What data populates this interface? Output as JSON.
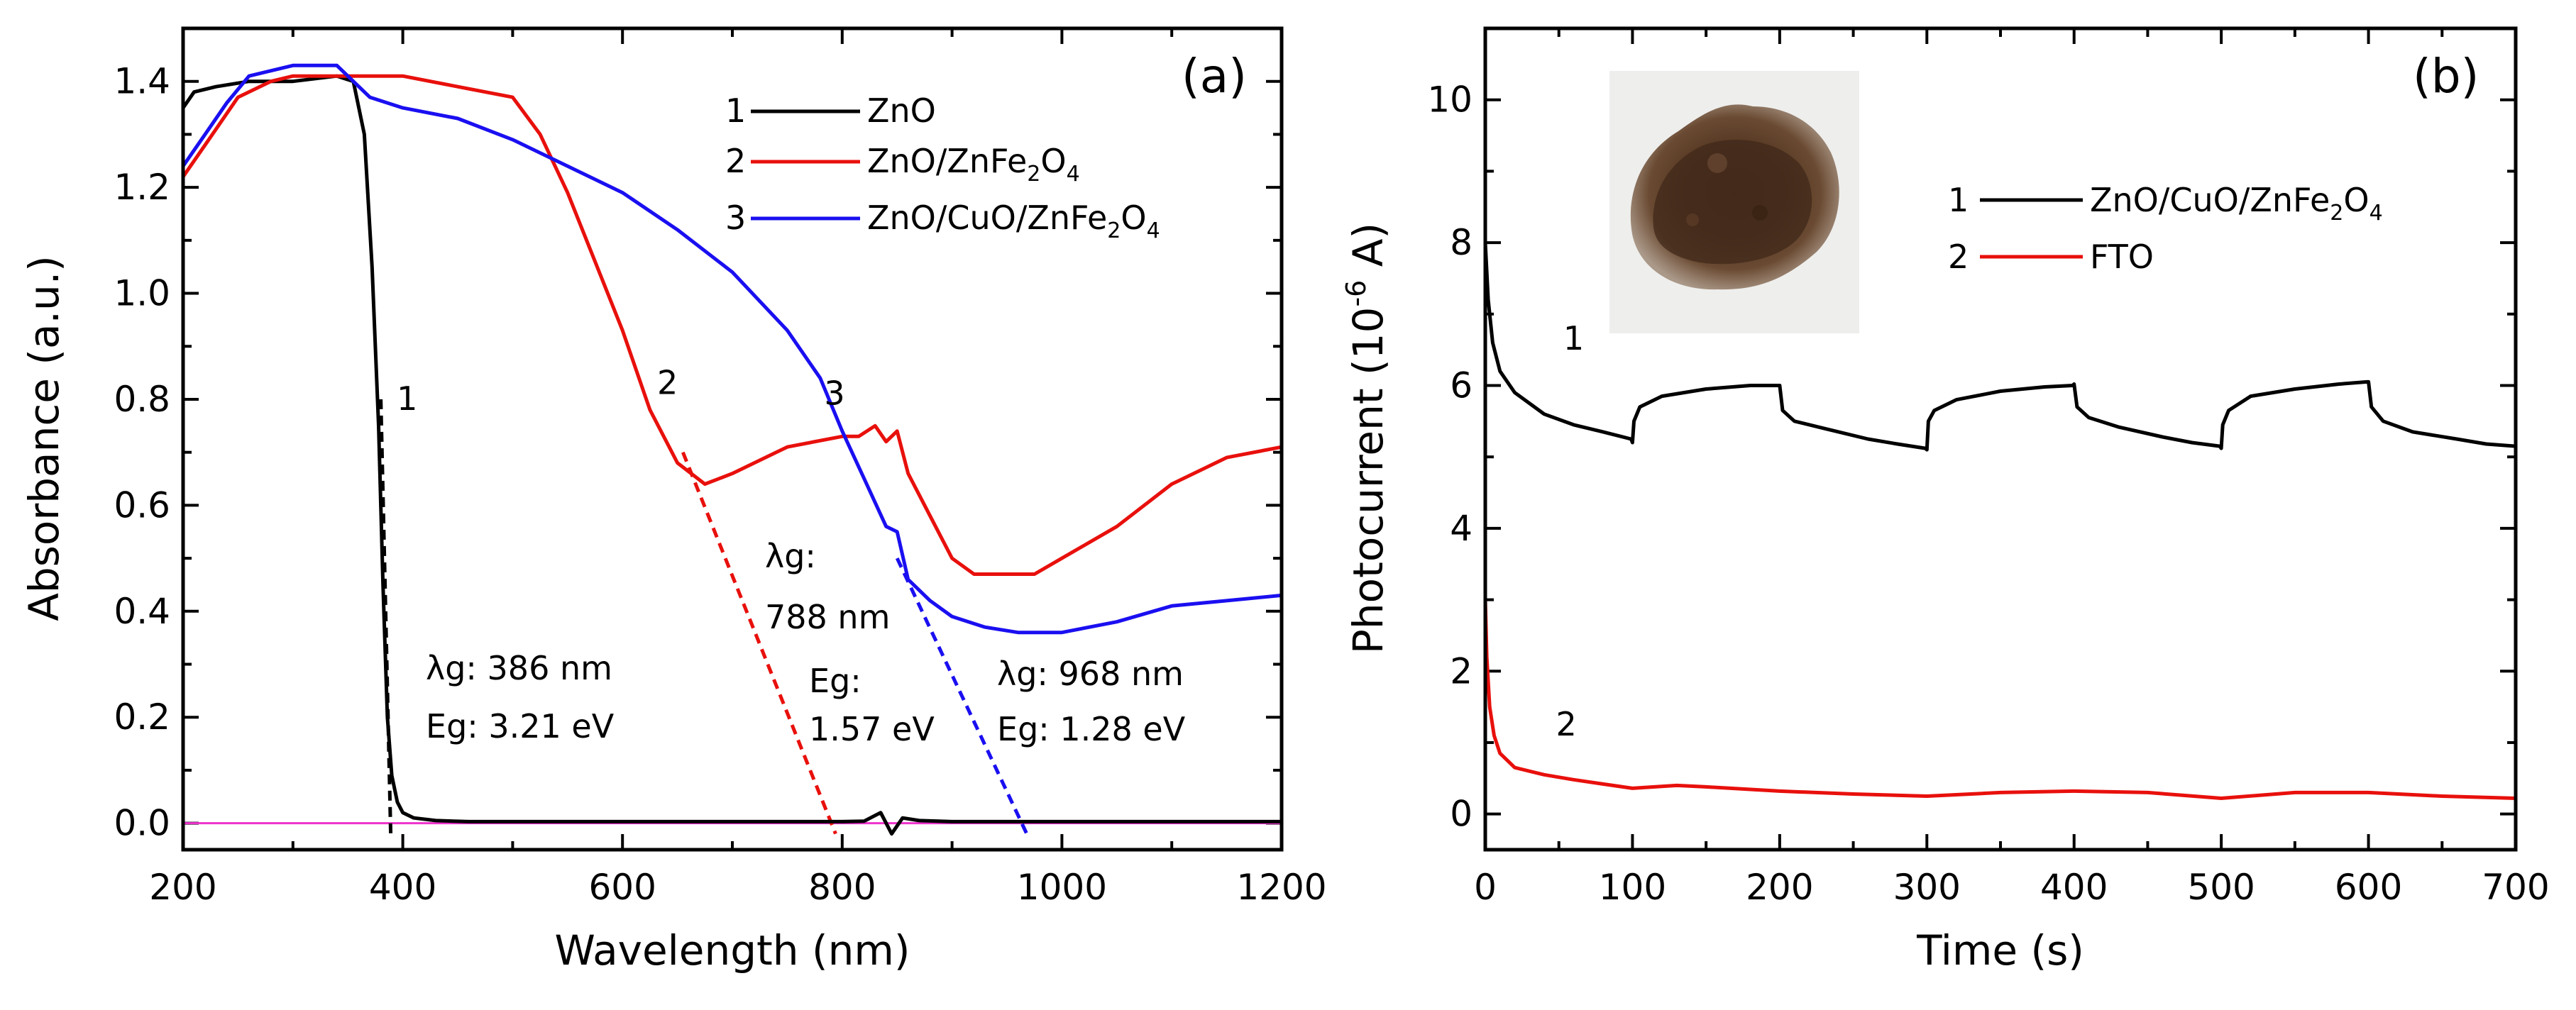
{
  "chart_data": [
    {
      "type": "line",
      "panel_label": "(a)",
      "xlabel": "Wavelength (nm)",
      "ylabel": "Absorbance (a.u.)",
      "xlim": [
        200,
        1200
      ],
      "ylim": [
        -0.05,
        1.5
      ],
      "xticks": [
        200,
        400,
        600,
        800,
        1000,
        1200
      ],
      "yticks": [
        "0.0",
        "0.2",
        "0.4",
        "0.6",
        "0.8",
        "1.0",
        "1.2",
        "1.4"
      ],
      "legend_position": "top-right",
      "series": [
        {
          "name": "ZnO",
          "number": "1",
          "color": "#000000",
          "x": [
            200,
            210,
            230,
            260,
            300,
            340,
            355,
            365,
            372,
            378,
            382,
            386,
            390,
            395,
            400,
            410,
            430,
            460,
            500,
            600,
            700,
            800,
            820,
            835,
            845,
            855,
            870,
            900,
            1000,
            1200
          ],
          "y": [
            1.35,
            1.38,
            1.39,
            1.4,
            1.4,
            1.41,
            1.4,
            1.3,
            1.05,
            0.75,
            0.45,
            0.2,
            0.09,
            0.04,
            0.02,
            0.01,
            0.005,
            0.003,
            0.003,
            0.003,
            0.003,
            0.003,
            0.004,
            0.02,
            -0.02,
            0.01,
            0.005,
            0.003,
            0.003,
            0.003
          ]
        },
        {
          "name": "ZnO/ZnFe2O4",
          "number": "2",
          "color": "#e8100c",
          "x": [
            200,
            220,
            250,
            280,
            300,
            350,
            400,
            450,
            500,
            525,
            550,
            575,
            600,
            625,
            650,
            675,
            700,
            750,
            800,
            815,
            830,
            840,
            850,
            860,
            880,
            900,
            920,
            950,
            975,
            1000,
            1050,
            1100,
            1150,
            1200
          ],
          "y": [
            1.22,
            1.28,
            1.37,
            1.4,
            1.41,
            1.41,
            1.41,
            1.39,
            1.37,
            1.3,
            1.19,
            1.06,
            0.93,
            0.78,
            0.68,
            0.64,
            0.66,
            0.71,
            0.73,
            0.73,
            0.75,
            0.72,
            0.74,
            0.66,
            0.58,
            0.5,
            0.47,
            0.47,
            0.47,
            0.5,
            0.56,
            0.64,
            0.69,
            0.71
          ]
        },
        {
          "name": "ZnO/CuO/ZnFe2O4",
          "number": "3",
          "color": "#1a0ff0",
          "x": [
            200,
            220,
            240,
            260,
            300,
            340,
            370,
            400,
            450,
            500,
            550,
            600,
            650,
            700,
            750,
            780,
            800,
            820,
            840,
            850,
            860,
            880,
            900,
            930,
            960,
            1000,
            1050,
            1100,
            1150,
            1200
          ],
          "y": [
            1.24,
            1.3,
            1.36,
            1.41,
            1.43,
            1.43,
            1.37,
            1.35,
            1.33,
            1.29,
            1.24,
            1.19,
            1.12,
            1.04,
            0.93,
            0.84,
            0.74,
            0.65,
            0.56,
            0.55,
            0.46,
            0.42,
            0.39,
            0.37,
            0.36,
            0.36,
            0.38,
            0.41,
            0.42,
            0.43
          ]
        }
      ],
      "guide_lines": [
        {
          "color": "#000000",
          "style": "dashed",
          "x": [
            380,
            389
          ],
          "y": [
            0.8,
            -0.02
          ]
        },
        {
          "color": "#e8100c",
          "style": "dashed",
          "x": [
            655,
            794
          ],
          "y": [
            0.7,
            -0.02
          ]
        },
        {
          "color": "#1a0ff0",
          "style": "dashed",
          "x": [
            850,
            968
          ],
          "y": [
            0.5,
            -0.02
          ]
        }
      ],
      "baseline": {
        "color": "#ee33cc",
        "y": 0.0
      },
      "curve_numbers": [
        {
          "text": "1",
          "x": 404,
          "y": 0.78
        },
        {
          "text": "2",
          "x": 641,
          "y": 0.81
        },
        {
          "text": "3",
          "x": 793,
          "y": 0.79
        }
      ],
      "annotations": [
        {
          "lambda_label": "λg",
          "lambda_value": ": 386 nm",
          "eg_label": "Eg",
          "eg_value": ": 3.21 eV"
        },
        {
          "lambda_label": "λg",
          "lambda_value": ":",
          "lambda_line2": "788 nm",
          "eg_label": "Eg",
          "eg_value": ":",
          "eg_line2": "1.57 eV"
        },
        {
          "lambda_label": "λg",
          "lambda_value": ": 968 nm",
          "eg_label": "Eg",
          "eg_value": ": 1.28 eV"
        }
      ]
    },
    {
      "type": "line",
      "panel_label": "(b)",
      "xlabel": "Time (s)",
      "ylabel_prefix": "Photocurrent (10",
      "ylabel_exp": "-6",
      "ylabel_suffix": " A)",
      "xlim": [
        0,
        700
      ],
      "ylim": [
        -0.5,
        11
      ],
      "xticks": [
        0,
        100,
        200,
        300,
        400,
        500,
        600,
        700
      ],
      "yticks": [
        0,
        2,
        4,
        6,
        8,
        10
      ],
      "legend_position": "top-right",
      "inset": "photo of brown powder sample",
      "series": [
        {
          "name": "ZnO/CuO/ZnFe2O4",
          "number": "1",
          "color": "#000000",
          "x": [
            0,
            2,
            5,
            10,
            20,
            40,
            60,
            80,
            99,
            100,
            101,
            105,
            120,
            150,
            180,
            199,
            200,
            202,
            210,
            230,
            260,
            280,
            299,
            300,
            301,
            305,
            320,
            350,
            380,
            399,
            400,
            402,
            410,
            430,
            460,
            480,
            499,
            500,
            501,
            505,
            520,
            550,
            580,
            599,
            600,
            602,
            610,
            630,
            660,
            680,
            700
          ],
          "y": [
            8.0,
            7.2,
            6.6,
            6.2,
            5.9,
            5.6,
            5.45,
            5.35,
            5.25,
            5.2,
            5.5,
            5.7,
            5.85,
            5.95,
            6.0,
            6.0,
            6.0,
            5.65,
            5.5,
            5.4,
            5.25,
            5.18,
            5.12,
            5.1,
            5.5,
            5.65,
            5.8,
            5.92,
            5.98,
            6.0,
            6.02,
            5.7,
            5.55,
            5.42,
            5.28,
            5.2,
            5.15,
            5.12,
            5.45,
            5.65,
            5.85,
            5.95,
            6.02,
            6.05,
            6.05,
            5.7,
            5.5,
            5.35,
            5.25,
            5.18,
            5.15
          ]
        },
        {
          "name": "FTO",
          "number": "2",
          "color": "#e8100c",
          "x": [
            0,
            1,
            3,
            6,
            10,
            20,
            40,
            60,
            80,
            100,
            130,
            150,
            200,
            250,
            300,
            350,
            400,
            450,
            500,
            550,
            600,
            650,
            700
          ],
          "y": [
            3.0,
            2.2,
            1.5,
            1.1,
            0.85,
            0.65,
            0.55,
            0.48,
            0.42,
            0.36,
            0.4,
            0.38,
            0.32,
            0.28,
            0.25,
            0.3,
            0.32,
            0.3,
            0.22,
            0.3,
            0.3,
            0.25,
            0.22
          ]
        }
      ],
      "curve_numbers": [
        {
          "text": "1",
          "x": 60,
          "y": 6.5
        },
        {
          "text": "2",
          "x": 55,
          "y": 1.1
        }
      ]
    }
  ]
}
